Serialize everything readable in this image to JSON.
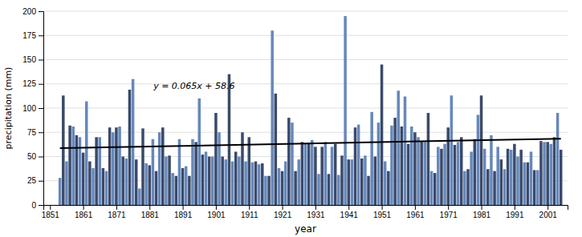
{
  "chart_data": {
    "type": "bar",
    "xlabel": "year",
    "ylabel": "precipitation (mm)",
    "annotations": [
      "y = 0.065x + 58.6"
    ],
    "xlim": [
      1849,
      2007
    ],
    "xticks": [
      1851,
      1861,
      1871,
      1881,
      1891,
      1901,
      1911,
      1921,
      1931,
      1941,
      1951,
      1961,
      1971,
      1981,
      1991,
      2001
    ],
    "ylim": [
      0,
      200
    ],
    "yticks": [
      0,
      25,
      50,
      75,
      100,
      125,
      150,
      175,
      200
    ],
    "grid": true,
    "series": [
      {
        "type": "bar",
        "x": [
          1854,
          1855,
          1856,
          1857,
          1858,
          1859,
          1860,
          1861,
          1862,
          1863,
          1864,
          1865,
          1866,
          1867,
          1868,
          1869,
          1870,
          1871,
          1872,
          1873,
          1874,
          1875,
          1876,
          1877,
          1878,
          1879,
          1880,
          1881,
          1882,
          1883,
          1884,
          1885,
          1886,
          1887,
          1888,
          1889,
          1890,
          1891,
          1892,
          1893,
          1894,
          1895,
          1896,
          1897,
          1898,
          1899,
          1900,
          1901,
          1902,
          1903,
          1904,
          1905,
          1906,
          1907,
          1908,
          1909,
          1910,
          1911,
          1912,
          1913,
          1914,
          1915,
          1916,
          1917,
          1918,
          1919,
          1920,
          1921,
          1922,
          1923,
          1924,
          1925,
          1926,
          1927,
          1928,
          1929,
          1930,
          1931,
          1932,
          1933,
          1934,
          1935,
          1936,
          1937,
          1938,
          1939,
          1940,
          1941,
          1942,
          1943,
          1944,
          1945,
          1946,
          1947,
          1948,
          1949,
          1950,
          1951,
          1952,
          1953,
          1954,
          1955,
          1956,
          1957,
          1958,
          1959,
          1960,
          1961,
          1962,
          1963,
          1964,
          1965,
          1966,
          1967,
          1968,
          1969,
          1970,
          1971,
          1972,
          1973,
          1974,
          1975,
          1976,
          1977,
          1978,
          1979,
          1980,
          1981,
          1982,
          1983,
          1984,
          1985,
          1986,
          1987,
          1988,
          1989,
          1990,
          1991,
          1992,
          1993,
          1994,
          1995,
          1996,
          1997,
          1998,
          1999,
          2000,
          2001,
          2002,
          2003,
          2004,
          2005
        ],
        "values": [
          28,
          113,
          45,
          82,
          81,
          72,
          70,
          54,
          107,
          45,
          38,
          70,
          70,
          38,
          35,
          80,
          75,
          80,
          81,
          50,
          48,
          119,
          130,
          47,
          17,
          79,
          43,
          41,
          68,
          35,
          75,
          80,
          50,
          51,
          33,
          30,
          68,
          38,
          40,
          30,
          68,
          65,
          110,
          52,
          55,
          50,
          50,
          95,
          75,
          50,
          47,
          135,
          45,
          55,
          50,
          75,
          45,
          70,
          44,
          45,
          42,
          43,
          30,
          30,
          180,
          115,
          38,
          35,
          45,
          90,
          85,
          35,
          47,
          65,
          63,
          64,
          67,
          60,
          32,
          60,
          65,
          32,
          60,
          63,
          31,
          51,
          195,
          47,
          47,
          80,
          83,
          48,
          51,
          30,
          96,
          50,
          85,
          145,
          45,
          35,
          82,
          90,
          118,
          81,
          112,
          63,
          81,
          75,
          70,
          66,
          65,
          95,
          35,
          33,
          60,
          58,
          63,
          80,
          113,
          62,
          65,
          70,
          35,
          37,
          55,
          68,
          93,
          113,
          58,
          37,
          72,
          35,
          60,
          47,
          37,
          58,
          57,
          63,
          50,
          57,
          44,
          44,
          55,
          36,
          36,
          66,
          65,
          65,
          63,
          70,
          95,
          57
        ],
        "colors": [
          "#6688bb",
          "#3a4a6b",
          "#6688bb",
          "#3a4a6b",
          "#6688bb",
          "#3a4a6b",
          "#6688bb",
          "#3a4a6b",
          "#6688bb",
          "#3a4a6b",
          "#6688bb",
          "#3a4a6b",
          "#6688bb",
          "#3a4a6b",
          "#6688bb",
          "#3a4a6b",
          "#6688bb",
          "#3a4a6b",
          "#6688bb",
          "#3a4a6b",
          "#6688bb",
          "#3a4a6b",
          "#6688bb",
          "#3a4a6b",
          "#6688bb",
          "#3a4a6b",
          "#6688bb",
          "#3a4a6b",
          "#6688bb",
          "#3a4a6b",
          "#6688bb",
          "#3a4a6b",
          "#6688bb",
          "#3a4a6b",
          "#6688bb",
          "#3a4a6b",
          "#6688bb",
          "#3a4a6b",
          "#6688bb",
          "#3a4a6b",
          "#6688bb",
          "#3a4a6b",
          "#6688bb",
          "#3a4a6b",
          "#6688bb",
          "#3a4a6b",
          "#6688bb",
          "#3a4a6b",
          "#6688bb",
          "#3a4a6b",
          "#6688bb",
          "#3a4a6b",
          "#6688bb",
          "#3a4a6b",
          "#6688bb",
          "#3a4a6b",
          "#6688bb",
          "#3a4a6b",
          "#6688bb",
          "#3a4a6b",
          "#6688bb",
          "#3a4a6b",
          "#6688bb",
          "#3a4a6b",
          "#6688bb",
          "#3a4a6b",
          "#6688bb",
          "#3a4a6b",
          "#6688bb",
          "#3a4a6b",
          "#6688bb",
          "#3a4a6b",
          "#6688bb",
          "#3a4a6b",
          "#6688bb",
          "#3a4a6b",
          "#6688bb",
          "#3a4a6b",
          "#6688bb",
          "#3a4a6b",
          "#6688bb",
          "#3a4a6b",
          "#6688bb",
          "#3a4a6b",
          "#6688bb",
          "#3a4a6b",
          "#6688bb",
          "#3a4a6b",
          "#6688bb",
          "#3a4a6b",
          "#6688bb",
          "#3a4a6b",
          "#6688bb",
          "#3a4a6b",
          "#6688bb",
          "#3a4a6b",
          "#6688bb",
          "#3a4a6b",
          "#6688bb",
          "#3a4a6b",
          "#6688bb",
          "#3a4a6b",
          "#6688bb",
          "#3a4a6b",
          "#6688bb",
          "#3a4a6b",
          "#6688bb",
          "#3a4a6b",
          "#6688bb",
          "#3a4a6b",
          "#6688bb",
          "#3a4a6b",
          "#6688bb",
          "#3a4a6b",
          "#6688bb",
          "#3a4a6b",
          "#6688bb",
          "#3a4a6b",
          "#6688bb",
          "#3a4a6b",
          "#6688bb",
          "#3a4a6b",
          "#6688bb",
          "#3a4a6b",
          "#6688bb",
          "#3a4a6b",
          "#6688bb",
          "#3a4a6b",
          "#6688bb",
          "#3a4a6b",
          "#6688bb",
          "#3a4a6b",
          "#6688bb",
          "#3a4a6b",
          "#6688bb",
          "#3a4a6b",
          "#6688bb",
          "#3a4a6b",
          "#6688bb",
          "#3a4a6b",
          "#6688bb",
          "#3a4a6b",
          "#6688bb",
          "#3a4a6b",
          "#6688bb",
          "#3a4a6b",
          "#6688bb",
          "#3a4a6b",
          "#6688bb",
          "#3a4a6b",
          "#6688bb",
          "#3a4a6b"
        ]
      },
      {
        "type": "line",
        "x": [
          1854,
          2005
        ],
        "values": [
          58.6,
          68.415
        ],
        "color": "#000000"
      }
    ]
  }
}
